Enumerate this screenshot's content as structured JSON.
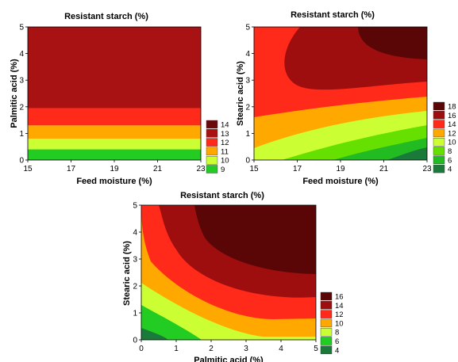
{
  "chart_data": [
    {
      "type": "contour",
      "title": "Resistant starch (%)",
      "xlabel": "Feed moisture (%)",
      "ylabel": "Palmitic acid (%)",
      "xlim": [
        15,
        23
      ],
      "ylim": [
        0,
        5
      ],
      "x_ticks": [
        "15",
        "17",
        "19",
        "21",
        "23"
      ],
      "y_ticks": [
        "0",
        "1",
        "2",
        "3",
        "4",
        "5"
      ],
      "legend": [
        {
          "label": "14",
          "color": "#6b0a0a"
        },
        {
          "label": "13",
          "color": "#a81212"
        },
        {
          "label": "12",
          "color": "#ff2a1a"
        },
        {
          "label": "11",
          "color": "#ffa800"
        },
        {
          "label": "10",
          "color": "#ccff33"
        },
        {
          "label": "9",
          "color": "#22cc22"
        }
      ],
      "bands_by_y": [
        {
          "y_from": 0,
          "y_to": 0.4,
          "color": "#22cc22"
        },
        {
          "y_from": 0.4,
          "y_to": 0.8,
          "color": "#ccff33"
        },
        {
          "y_from": 0.8,
          "y_to": 1.3,
          "color": "#ffa800"
        },
        {
          "y_from": 1.3,
          "y_to": 1.95,
          "color": "#ff2a1a"
        },
        {
          "y_from": 1.95,
          "y_to": 5,
          "color": "#a81212"
        }
      ]
    },
    {
      "type": "contour",
      "title": "Resistant starch (%)",
      "xlabel": "Feed moisture (%)",
      "ylabel": "Stearic acid (%)",
      "xlim": [
        15,
        23
      ],
      "ylim": [
        0,
        5
      ],
      "x_ticks": [
        "15",
        "17",
        "19",
        "21",
        "23"
      ],
      "y_ticks": [
        "0",
        "1",
        "2",
        "3",
        "4",
        "5"
      ],
      "legend": [
        {
          "label": "18",
          "color": "#5a0606"
        },
        {
          "label": "16",
          "color": "#9e0e0e"
        },
        {
          "label": "14",
          "color": "#ff2a1a"
        },
        {
          "label": "12",
          "color": "#ffa800"
        },
        {
          "label": "10",
          "color": "#ccff33"
        },
        {
          "label": "8",
          "color": "#66e000"
        },
        {
          "label": "6",
          "color": "#22bb22"
        },
        {
          "label": "4",
          "color": "#1a7a3a"
        }
      ]
    },
    {
      "type": "contour",
      "title": "Resistant starch (%)",
      "xlabel": "Palmitic acid (%)",
      "ylabel": "Stearic acid (%)",
      "xlim": [
        0,
        5
      ],
      "ylim": [
        0,
        5
      ],
      "x_ticks": [
        "0",
        "1",
        "2",
        "3",
        "4",
        "5"
      ],
      "y_ticks": [
        "0",
        "1",
        "2",
        "3",
        "4",
        "5"
      ],
      "legend": [
        {
          "label": "16",
          "color": "#5a0606"
        },
        {
          "label": "14",
          "color": "#9e0e0e"
        },
        {
          "label": "12",
          "color": "#ff2a1a"
        },
        {
          "label": "10",
          "color": "#ffa800"
        },
        {
          "label": "8",
          "color": "#ccff33"
        },
        {
          "label": "6",
          "color": "#22cc22"
        },
        {
          "label": "4",
          "color": "#1a7a3a"
        }
      ]
    }
  ]
}
